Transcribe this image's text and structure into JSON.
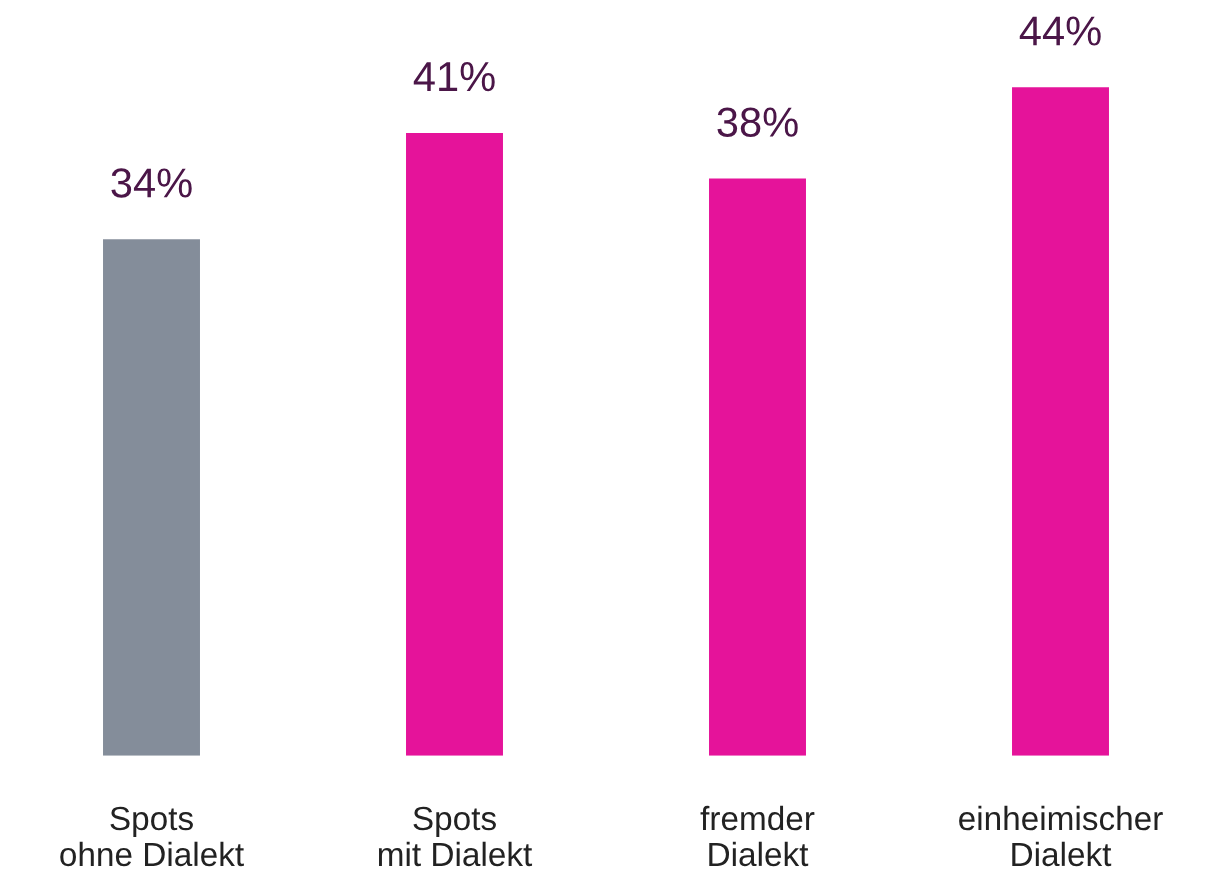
{
  "chart_data": {
    "type": "bar",
    "categories": [
      "Spots\nohne Dialekt",
      "Spots\nmit Dialekt",
      "fremder\nDialekt",
      "einheimischer\nDialekt"
    ],
    "values": [
      34,
      41,
      38,
      44
    ],
    "colors": [
      "#848d9a",
      "#e5139a",
      "#e5139a",
      "#e5139a"
    ],
    "value_labels": [
      "34%",
      "41%",
      "38%",
      "44%"
    ],
    "tick_labels": "x",
    "grid": false,
    "legend": false
  }
}
